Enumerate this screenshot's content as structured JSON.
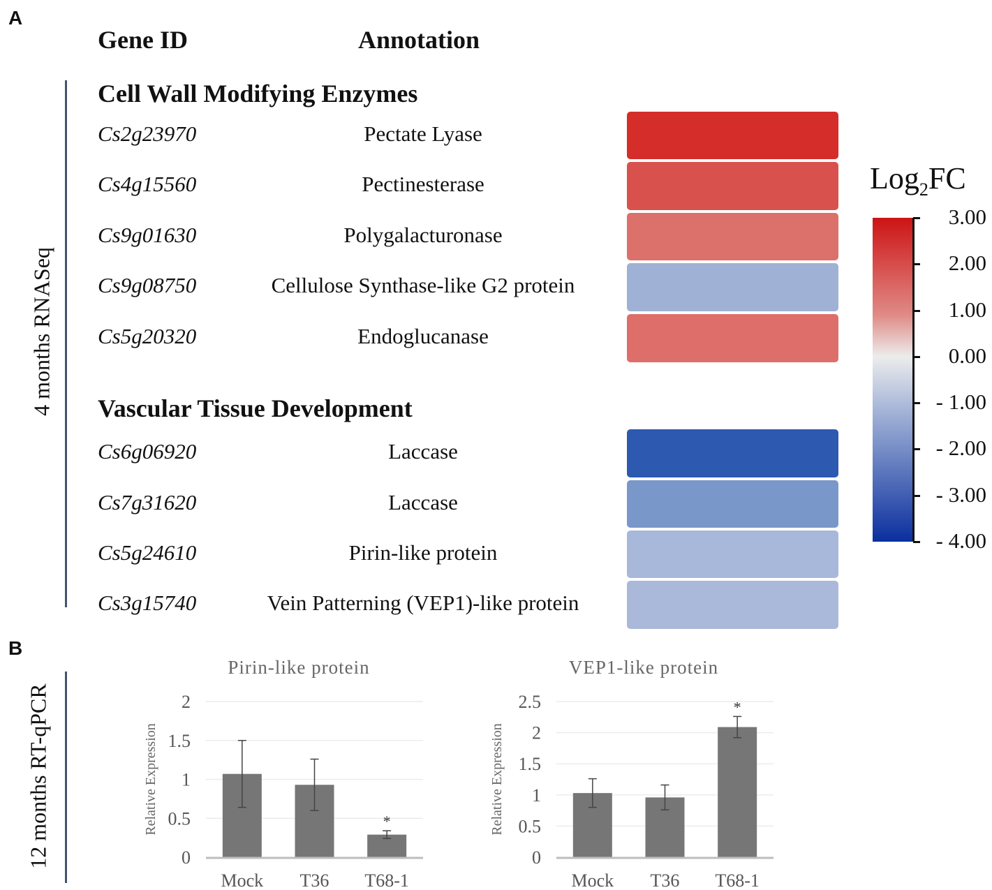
{
  "panel_a": {
    "label": "A",
    "headers": {
      "gene_id": "Gene ID",
      "annotation": "Annotation"
    },
    "side_label": "4 months RNASeq",
    "groups": [
      {
        "title": "Cell Wall Modifying Enzymes",
        "rows": [
          {
            "gene": "Cs2g23970",
            "annotation": "Pectate Lyase",
            "log2fc": 2.8,
            "color": "#d42d2a"
          },
          {
            "gene": "Cs4g15560",
            "annotation": "Pectinesterase",
            "log2fc": 2.2,
            "color": "#d9514d"
          },
          {
            "gene": "Cs9g01630",
            "annotation": "Polygalacturonase",
            "log2fc": 1.7,
            "color": "#dc706b"
          },
          {
            "gene": "Cs9g08750",
            "annotation": "Cellulose Synthase-like G2  protein",
            "log2fc": -1.6,
            "color": "#a0b1d6"
          },
          {
            "gene": "Cs5g20320",
            "annotation": "Endoglucanase",
            "log2fc": 1.7,
            "color": "#dd6e69"
          }
        ]
      },
      {
        "title": "Vascular Tissue Development",
        "rows": [
          {
            "gene": "Cs6g06920",
            "annotation": "Laccase",
            "log2fc": -3.3,
            "color": "#2d59b0"
          },
          {
            "gene": "Cs7g31620",
            "annotation": "Laccase",
            "log2fc": -2.3,
            "color": "#7a97ca"
          },
          {
            "gene": "Cs5g24610",
            "annotation": "Pirin-like protein",
            "log2fc": -1.4,
            "color": "#a8b8da"
          },
          {
            "gene": "Cs3g15740",
            "annotation": "Vein Patterning (VEP1)-like protein",
            "log2fc": -1.4,
            "color": "#aab9da"
          }
        ]
      }
    ],
    "colorbar": {
      "title_main": "Log",
      "title_sub": "2",
      "title_end": "FC",
      "ticks": [
        "3.00",
        "2.00",
        "1.00",
        "0.00",
        "- 1.00",
        "- 2.00",
        "- 3.00",
        "- 4.00"
      ],
      "range": [
        -4,
        3
      ],
      "colors": {
        "high": "#cc1414",
        "mid": "#ececec",
        "low": "#0a2f9e"
      }
    }
  },
  "panel_b": {
    "label": "B",
    "side_label": "12 months RT-qPCR"
  },
  "chart_data": [
    {
      "type": "bar",
      "title": "Pirin-like protein",
      "ylabel": "Relative Expression",
      "xlabel": "",
      "categories": [
        "Mock",
        "T36",
        "T68-1"
      ],
      "values": [
        1.07,
        0.93,
        0.29
      ],
      "errors": [
        0.43,
        0.33,
        0.05
      ],
      "significance": [
        "",
        "",
        "*"
      ],
      "ylim": [
        0,
        2
      ],
      "yticks": [
        "0",
        "0.5",
        "1",
        "1.5",
        "2"
      ],
      "ytick_values": [
        0,
        0.5,
        1,
        1.5,
        2
      ],
      "grid": true,
      "bar_color": "#767676"
    },
    {
      "type": "bar",
      "title": "VEP1-like protein",
      "ylabel": "Relative Expression",
      "xlabel": "",
      "categories": [
        "Mock",
        "T36",
        "T68-1"
      ],
      "values": [
        1.03,
        0.96,
        2.09
      ],
      "errors": [
        0.23,
        0.2,
        0.17
      ],
      "significance": [
        "",
        "",
        "*"
      ],
      "ylim": [
        0,
        2.5
      ],
      "yticks": [
        "0",
        "0.5",
        "1",
        "1.5",
        "2",
        "2.5"
      ],
      "ytick_values": [
        0,
        0.5,
        1,
        1.5,
        2,
        2.5
      ],
      "grid": true,
      "bar_color": "#767676"
    }
  ]
}
